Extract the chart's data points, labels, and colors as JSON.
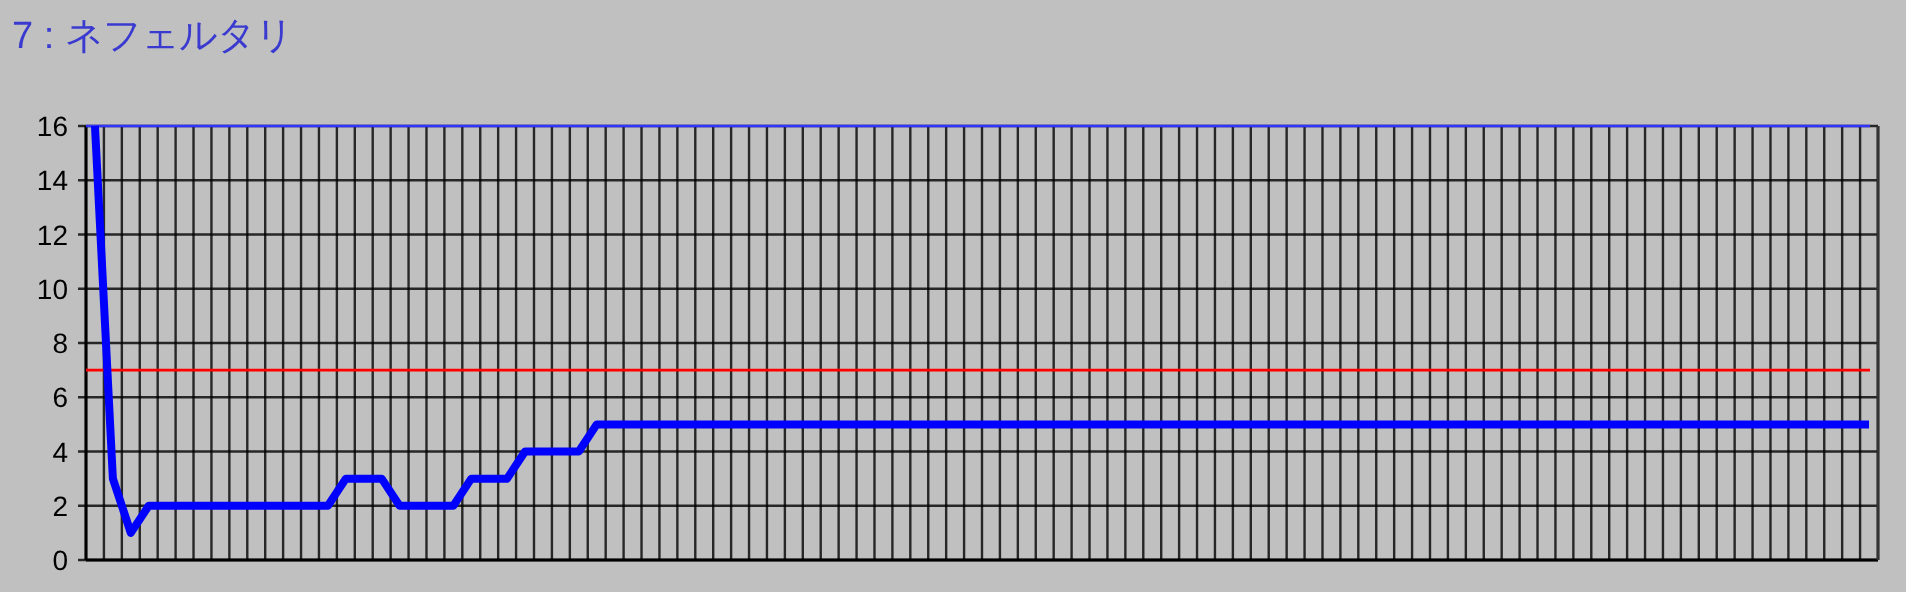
{
  "chart_data": {
    "type": "line",
    "title": "7 : ネフェルタリ",
    "categories": [
      null,
      null,
      null,
      null,
      null,
      null,
      null,
      null,
      null,
      null,
      null,
      null,
      null,
      null,
      null,
      null,
      null,
      null,
      null,
      null,
      null,
      null,
      null,
      null,
      null,
      null,
      null,
      null,
      null,
      null,
      null,
      null,
      null,
      null,
      null,
      null,
      null,
      null,
      null,
      null,
      null,
      null,
      null,
      null,
      null,
      null,
      null,
      null,
      null,
      null,
      null,
      null,
      null,
      null,
      null,
      null,
      null,
      null,
      null,
      null,
      null,
      null,
      null,
      null,
      null,
      null,
      null,
      null,
      null,
      null,
      null,
      null,
      null,
      null,
      null,
      null,
      null,
      null,
      null,
      null,
      null,
      null,
      null,
      null,
      null,
      null,
      null,
      null,
      null,
      null,
      null,
      null,
      null,
      null,
      null,
      null,
      null,
      null,
      null,
      null
    ],
    "series": [
      {
        "color": "#0000ff",
        "values": [
          16,
          3,
          1,
          2,
          2,
          2,
          2,
          2,
          2,
          2,
          2,
          2,
          2,
          2,
          3,
          3,
          3,
          2,
          2,
          2,
          2,
          3,
          3,
          3,
          4,
          4,
          4,
          4,
          5,
          5,
          5,
          5,
          5,
          5,
          5,
          5,
          5,
          5,
          5,
          5,
          5,
          5,
          5,
          5,
          5,
          5,
          5,
          5,
          5,
          5,
          5,
          5,
          5,
          5,
          5,
          5,
          5,
          5,
          5,
          5,
          5,
          5,
          5,
          5,
          5,
          5,
          5,
          5,
          5,
          5,
          5,
          5,
          5,
          5,
          5,
          5,
          5,
          5,
          5,
          5,
          5,
          5,
          5,
          5,
          5,
          5,
          5,
          5,
          5,
          5,
          5,
          5,
          5,
          5,
          5,
          5,
          5,
          5,
          5,
          5
        ]
      }
    ],
    "ylim": [
      0,
      16
    ],
    "yticks": [
      0,
      2,
      4,
      6,
      8,
      10,
      12,
      14,
      16
    ],
    "grid": true,
    "tick_labels": "y",
    "ref_lines": [
      {
        "axis": "y",
        "value": 7,
        "color": "#ff0000"
      },
      {
        "axis": "y",
        "value": 16,
        "color": "#3333ff"
      }
    ]
  }
}
